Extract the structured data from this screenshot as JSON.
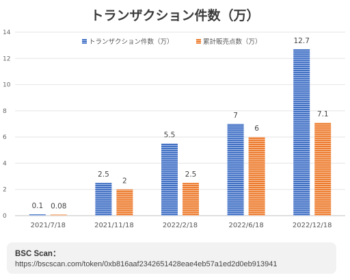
{
  "chart_data": {
    "type": "bar",
    "title": "トランザクション件数（万）",
    "categories": [
      "2021/7/18",
      "2021/11/18",
      "2022/2/18",
      "2022/6/18",
      "2022/12/18"
    ],
    "series": [
      {
        "name": "トランザクション件数（万）",
        "values": [
          0.1,
          2.5,
          5.5,
          7,
          12.7
        ],
        "labels": [
          "0.1",
          "2.5",
          "5.5",
          "7",
          "12.7"
        ],
        "color": "#4472C4"
      },
      {
        "name": "累計販売点数（万）",
        "values": [
          0.08,
          2,
          2.5,
          6,
          7.1
        ],
        "labels": [
          "0.08",
          "2",
          "2.5",
          "6",
          "7.1"
        ],
        "color": "#ED7D31"
      }
    ],
    "yticks": [
      "0",
      "2",
      "4",
      "6",
      "8",
      "10",
      "12",
      "14"
    ],
    "ylim": [
      0,
      14
    ],
    "xlabel": "",
    "ylabel": "",
    "grid": true,
    "legend": "top-center"
  },
  "source": {
    "title": "BSC Scan：",
    "url": "https://bscscan.com/token/0xb816aaf2342651428eae4eb57a1ed2d0eb913941"
  }
}
